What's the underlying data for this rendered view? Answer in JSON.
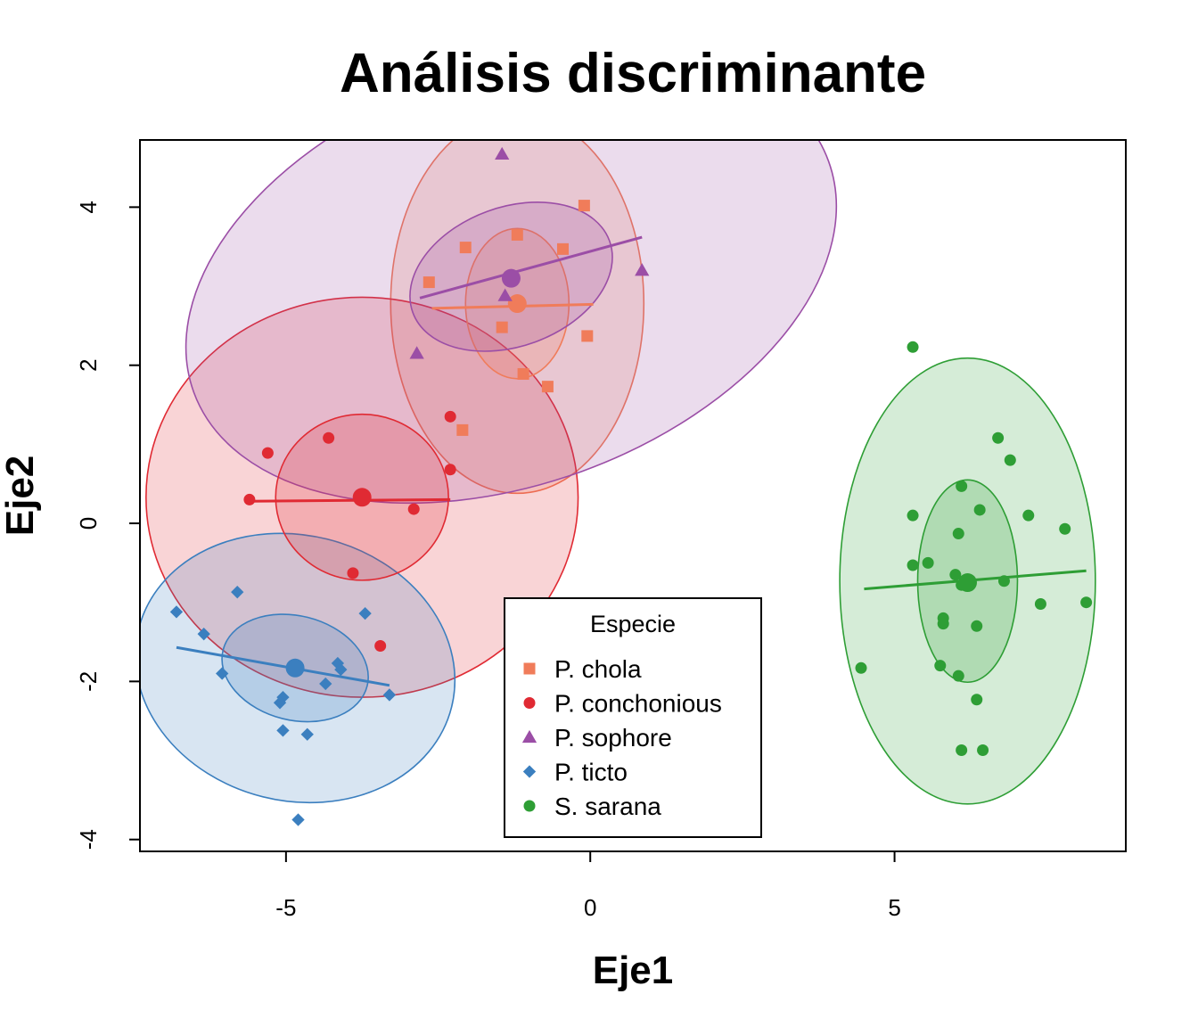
{
  "chart_data": {
    "type": "scatter",
    "title": "Análisis discriminante",
    "xlabel": "Eje1",
    "ylabel": "Eje2",
    "xlim": [
      -7.4,
      8.8
    ],
    "ylim": [
      -4.15,
      4.85
    ],
    "xticks": [
      -5,
      0,
      5
    ],
    "yticks": [
      -4,
      -2,
      0,
      2,
      4
    ],
    "grid": false,
    "legend": {
      "title": "Especie",
      "position": "bottom-center"
    },
    "series": [
      {
        "name": "P. chola",
        "color": "#f07c5a",
        "marker": "square",
        "centroid": [
          -1.2,
          2.78
        ],
        "inner_ellipse": {
          "cx": -1.2,
          "cy": 2.78,
          "rx": 0.85,
          "ry": 0.95,
          "angle": 0
        },
        "outer_ellipse": {
          "cx": -1.2,
          "cy": 2.78,
          "rx": 2.08,
          "ry": 2.4,
          "angle": 0
        },
        "fit_line": [
          [
            -2.6,
            2.72
          ],
          [
            0.05,
            2.77
          ]
        ],
        "points": [
          [
            -0.1,
            4.02
          ],
          [
            -1.2,
            3.65
          ],
          [
            -2.05,
            3.49
          ],
          [
            -0.45,
            3.47
          ],
          [
            -2.65,
            3.05
          ],
          [
            -1.45,
            2.48
          ],
          [
            -0.05,
            2.37
          ],
          [
            -1.1,
            1.89
          ],
          [
            -0.7,
            1.73
          ],
          [
            -2.1,
            1.18
          ]
        ]
      },
      {
        "name": "P. conchonious",
        "color": "#e02a33",
        "marker": "circle",
        "centroid": [
          -3.75,
          0.33
        ],
        "inner_ellipse": {
          "cx": -3.75,
          "cy": 0.33,
          "rx": 1.42,
          "ry": 1.05,
          "angle": 0
        },
        "outer_ellipse": {
          "cx": -3.75,
          "cy": 0.33,
          "rx": 3.55,
          "ry": 2.53,
          "angle": 0
        },
        "fit_line": [
          [
            -5.6,
            0.28
          ],
          [
            -2.3,
            0.3
          ]
        ],
        "points": [
          [
            -4.3,
            1.08
          ],
          [
            -5.3,
            0.89
          ],
          [
            -2.3,
            0.68
          ],
          [
            -5.6,
            0.3
          ],
          [
            -2.9,
            0.18
          ],
          [
            -3.9,
            -0.63
          ],
          [
            -3.45,
            -1.55
          ],
          [
            -2.3,
            1.35
          ]
        ]
      },
      {
        "name": "P. sophore",
        "color": "#9b4ea6",
        "marker": "triangle",
        "centroid": [
          -1.3,
          3.1
        ],
        "inner_ellipse": {
          "cx": -1.3,
          "cy": 3.12,
          "rx": 1.72,
          "ry": 0.88,
          "angle": 20
        },
        "outer_ellipse": {
          "cx": -1.3,
          "cy": 3.12,
          "rx": 5.55,
          "ry": 2.62,
          "angle": 20
        },
        "fit_line": [
          [
            -2.8,
            2.85
          ],
          [
            0.85,
            3.62
          ]
        ],
        "points": [
          [
            -1.45,
            4.67
          ],
          [
            0.85,
            3.2
          ],
          [
            -2.85,
            2.15
          ],
          [
            -1.4,
            2.88
          ]
        ]
      },
      {
        "name": "P. ticto",
        "color": "#3b7fbf",
        "marker": "diamond",
        "centroid": [
          -4.85,
          -1.83
        ],
        "inner_ellipse": {
          "cx": -4.85,
          "cy": -1.83,
          "rx": 1.22,
          "ry": 0.66,
          "angle": -14
        },
        "outer_ellipse": {
          "cx": -4.85,
          "cy": -1.83,
          "rx": 2.65,
          "ry": 1.68,
          "angle": -14
        },
        "fit_line": [
          [
            -6.8,
            -1.57
          ],
          [
            -3.3,
            -2.05
          ]
        ],
        "points": [
          [
            -5.8,
            -0.87
          ],
          [
            -6.8,
            -1.12
          ],
          [
            -3.7,
            -1.14
          ],
          [
            -6.35,
            -1.4
          ],
          [
            -4.15,
            -1.77
          ],
          [
            -4.1,
            -1.85
          ],
          [
            -6.05,
            -1.9
          ],
          [
            -4.35,
            -2.03
          ],
          [
            -3.3,
            -2.17
          ],
          [
            -5.05,
            -2.2
          ],
          [
            -5.1,
            -2.27
          ],
          [
            -4.65,
            -2.67
          ],
          [
            -5.05,
            -2.62
          ],
          [
            -4.8,
            -3.75
          ]
        ]
      },
      {
        "name": "S. sarana",
        "color": "#2e9e35",
        "marker": "circle",
        "centroid": [
          6.2,
          -0.75
        ],
        "inner_ellipse": {
          "cx": 6.2,
          "cy": -0.73,
          "rx": 0.82,
          "ry": 1.28,
          "angle": 0
        },
        "outer_ellipse": {
          "cx": 6.2,
          "cy": -0.73,
          "rx": 2.1,
          "ry": 2.82,
          "angle": 0
        },
        "fit_line": [
          [
            4.5,
            -0.83
          ],
          [
            8.15,
            -0.6
          ]
        ],
        "points": [
          [
            5.3,
            2.23
          ],
          [
            6.7,
            1.08
          ],
          [
            6.9,
            0.8
          ],
          [
            6.1,
            0.47
          ],
          [
            5.3,
            0.1
          ],
          [
            6.4,
            0.17
          ],
          [
            7.2,
            0.1
          ],
          [
            7.8,
            -0.07
          ],
          [
            6.05,
            -0.13
          ],
          [
            5.55,
            -0.5
          ],
          [
            5.3,
            -0.53
          ],
          [
            6.0,
            -0.65
          ],
          [
            6.8,
            -0.73
          ],
          [
            6.1,
            -0.78
          ],
          [
            5.8,
            -1.2
          ],
          [
            5.8,
            -1.27
          ],
          [
            7.4,
            -1.02
          ],
          [
            8.15,
            -1.0
          ],
          [
            6.35,
            -1.3
          ],
          [
            4.45,
            -1.83
          ],
          [
            5.75,
            -1.8
          ],
          [
            6.05,
            -1.93
          ],
          [
            6.35,
            -2.23
          ],
          [
            6.1,
            -2.87
          ],
          [
            6.45,
            -2.87
          ]
        ]
      }
    ]
  }
}
